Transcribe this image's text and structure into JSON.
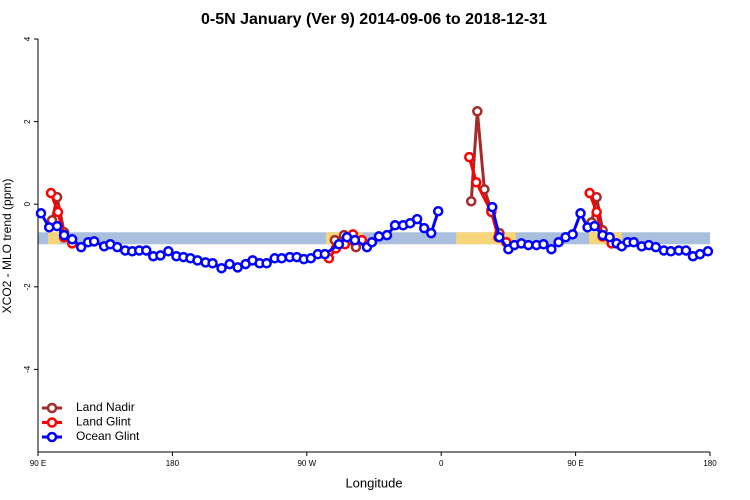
{
  "chart_data": {
    "type": "line",
    "title": "0-5N January (Ver 9)   2014-09-06 to 2018-12-31",
    "x_label": "Longitude",
    "y_label": "XCO2 - MLO trend (ppm)",
    "xlim": [
      90,
      540
    ],
    "xticks": [
      {
        "value": 90,
        "label": "90 E"
      },
      {
        "value": 180,
        "label": "180"
      },
      {
        "value": 270,
        "label": "90 W"
      },
      {
        "value": 360,
        "label": "0"
      },
      {
        "value": 450,
        "label": "90 E"
      },
      {
        "value": 540,
        "label": "180"
      }
    ],
    "ylim": [
      -6,
      4
    ],
    "yticks": [
      -4,
      -2,
      0,
      2,
      4
    ],
    "band": {
      "ylim": [
        -0.97,
        -0.68
      ],
      "color": "#aabfdd"
    },
    "land_ranges": {
      "color": "#f7d57a",
      "ranges": [
        [
          96.7,
          104.8
        ],
        [
          282.8,
          307.6
        ],
        [
          370,
          410
        ],
        [
          459,
          481
        ]
      ]
    },
    "legend": "bottom-left",
    "series": [
      {
        "name": "Land Nadir",
        "color": "#a52a2a",
        "x": [
          99.4,
          102.8,
          107.5,
          null,
          288.8,
          294.9,
          299.5,
          302.9,
          null,
          380.1,
          384.2,
          388.9,
          393.6,
          399.0,
          null,
          460.7,
          464.1,
          468.1
        ],
        "values": [
          -0.39,
          0.17,
          -0.68,
          null,
          -0.87,
          -0.75,
          -0.87,
          -1.04,
          null,
          0.07,
          2.25,
          0.36,
          -0.15,
          -0.7,
          null,
          -0.44,
          0.17,
          -0.63
        ]
      },
      {
        "name": "Land Glint",
        "color": "#ff0000",
        "x": [
          98.7,
          103.4,
          107.5,
          112.9,
          null,
          284.8,
          289.5,
          295.5,
          300.9,
          306.9,
          null,
          378.8,
          383.5,
          393.6,
          398.3,
          403.6,
          null,
          459.4,
          464.1,
          468.1,
          474.1
        ],
        "values": [
          0.27,
          -0.19,
          -0.8,
          -0.95,
          null,
          -1.31,
          -1.07,
          -0.97,
          -0.73,
          -0.87,
          null,
          1.14,
          0.53,
          -0.19,
          -0.8,
          -0.92,
          null,
          0.27,
          -0.19,
          -0.78,
          -0.95
        ]
      },
      {
        "name": "Ocean Glint",
        "color": "#0000ff",
        "x": [
          92.0,
          97.5,
          102.8,
          107.5,
          112.9,
          118.9,
          123.6,
          127.6,
          134.3,
          138.4,
          143.1,
          148.4,
          153.1,
          157.8,
          162.5,
          167.2,
          172.0,
          177.3,
          182.7,
          187.4,
          192.1,
          196.8,
          202.2,
          206.9,
          212.9,
          218.3,
          223.7,
          229.0,
          233.7,
          238.4,
          243.1,
          248.5,
          253.2,
          258.6,
          263.3,
          268.0,
          272.7,
          277.4,
          282.1,
          291.5,
          296.9,
          302.2,
          310.3,
          313.6,
          318.3,
          323.7,
          329.1,
          334.5,
          339.2,
          343.9,
          348.6,
          353.3,
          358.0,
          null,
          394.2,
          398.9,
          405.0,
          409.0,
          413.7,
          418.4,
          423.8,
          428.5,
          433.8,
          438.6,
          443.3,
          448.0,
          453.3,
          458.0,
          462.7,
          468.1,
          472.8,
          477.5,
          480.9,
          484.9,
          488.9,
          494.3,
          499.0,
          503.7,
          509.1,
          513.8,
          519.1,
          523.9,
          528.6,
          533.3,
          538.6
        ],
        "values": [
          -0.22,
          -0.56,
          -0.53,
          -0.75,
          -0.85,
          -1.04,
          -0.92,
          -0.9,
          -1.02,
          -0.97,
          -1.04,
          -1.12,
          -1.14,
          -1.12,
          -1.12,
          -1.26,
          -1.24,
          -1.14,
          -1.26,
          -1.28,
          -1.31,
          -1.36,
          -1.41,
          -1.43,
          -1.55,
          -1.45,
          -1.53,
          -1.45,
          -1.36,
          -1.43,
          -1.43,
          -1.31,
          -1.31,
          -1.28,
          -1.28,
          -1.33,
          -1.31,
          -1.21,
          -1.21,
          -0.97,
          -0.8,
          -0.87,
          -1.04,
          -0.92,
          -0.78,
          -0.75,
          -0.51,
          -0.51,
          -0.46,
          -0.36,
          -0.58,
          -0.7,
          -0.17,
          null,
          -0.07,
          -0.8,
          -1.09,
          -0.99,
          -0.95,
          -0.99,
          -0.99,
          -0.97,
          -1.09,
          -0.92,
          -0.8,
          -0.73,
          -0.22,
          -0.56,
          -0.53,
          -0.75,
          -0.8,
          -0.95,
          -1.02,
          -0.92,
          -0.92,
          -1.02,
          -0.99,
          -1.04,
          -1.12,
          -1.14,
          -1.12,
          -1.12,
          -1.26,
          -1.21,
          -1.14
        ]
      }
    ]
  }
}
